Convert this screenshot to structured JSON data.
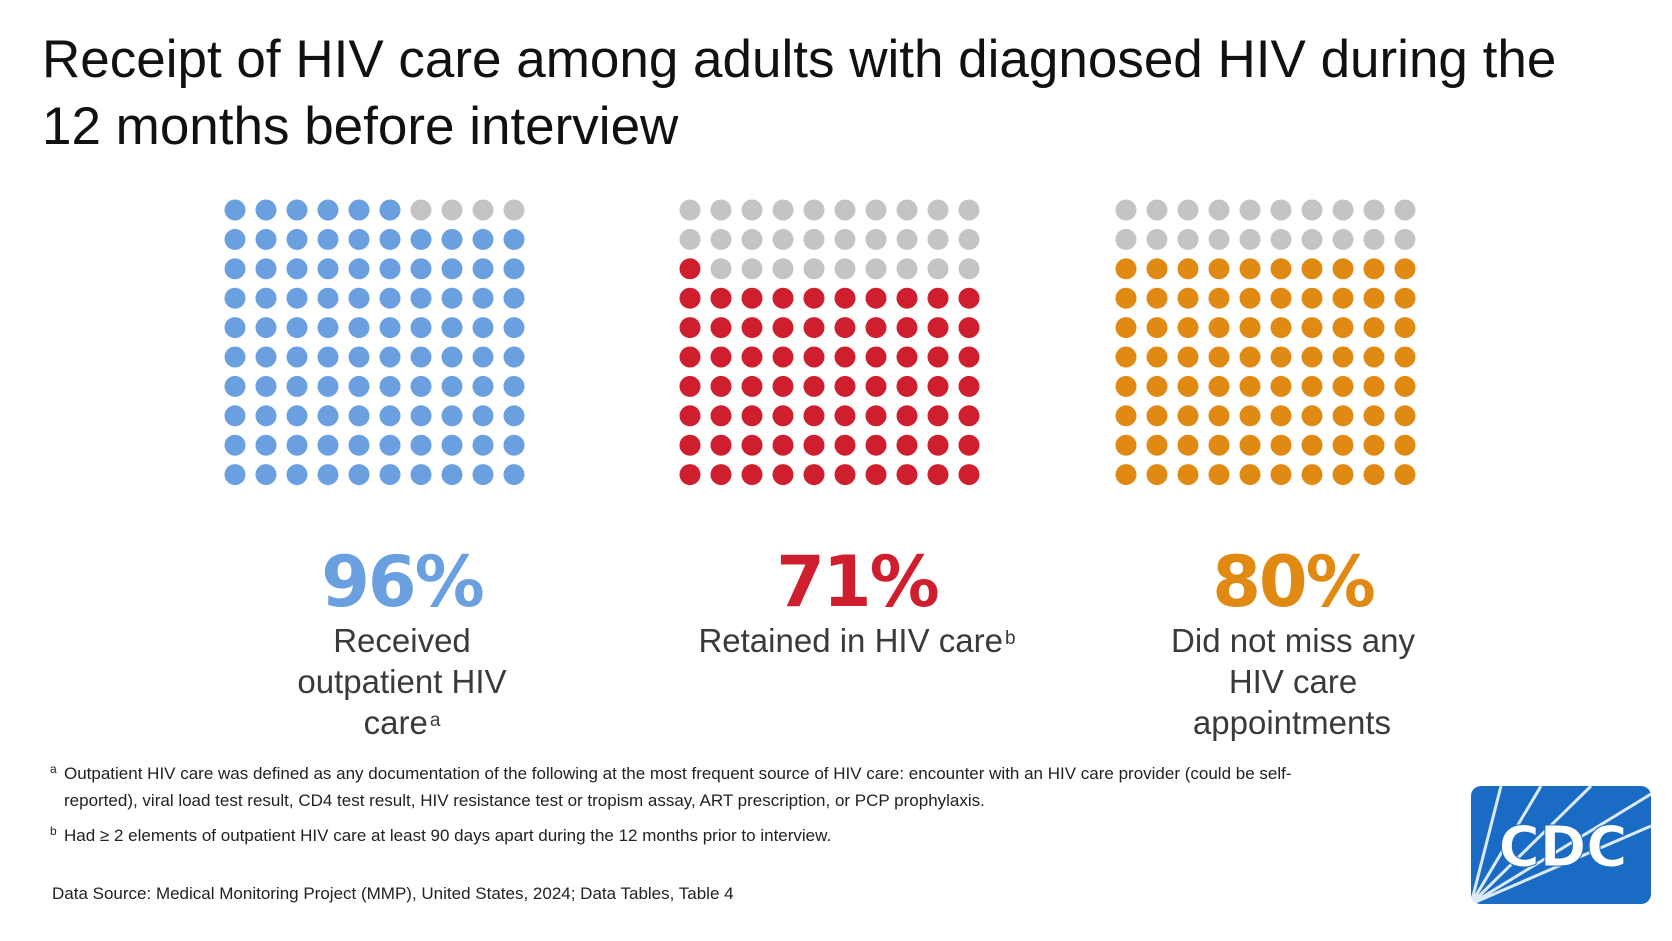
{
  "title": "Receipt of HIV care among adults with diagnosed HIV during the 12 months before interview",
  "chart_data": [
    {
      "type": "waffle",
      "total": 100,
      "value": 96,
      "value_label": "96%",
      "label": "Received outpatient HIV care",
      "footnote_ref": "a",
      "color": "#6a9fe0",
      "empty_color": "#c4c4c4"
    },
    {
      "type": "waffle",
      "total": 100,
      "value": 71,
      "value_label": "71%",
      "label": "Retained in HIV care",
      "footnote_ref": "b",
      "color": "#cf1f2e",
      "empty_color": "#c4c4c4"
    },
    {
      "type": "waffle",
      "total": 100,
      "value": 80,
      "value_label": "80%",
      "label": "Did not miss any HIV care appointments",
      "footnote_ref": "",
      "color": "#e08a14",
      "empty_color": "#c4c4c4"
    }
  ],
  "footnotes": [
    {
      "mark": "a",
      "text": "Outpatient HIV care was defined as any documentation of the following at the most frequent source of HIV care: encounter with an HIV care provider (could be self-reported), viral load test result, CD4 test result, HIV resistance test or tropism assay, ART prescription, or PCP prophylaxis."
    },
    {
      "mark": "b",
      "text": "Had ≥ 2 elements of outpatient HIV care at least 90 days apart during the 12 months prior to interview."
    }
  ],
  "source": "Data Source: Medical Monitoring Project (MMP), United States, 2024; Data Tables, Table 4",
  "logo": {
    "text": "CDC",
    "icon": "cdc-logo",
    "color": "#1a6bc4"
  }
}
